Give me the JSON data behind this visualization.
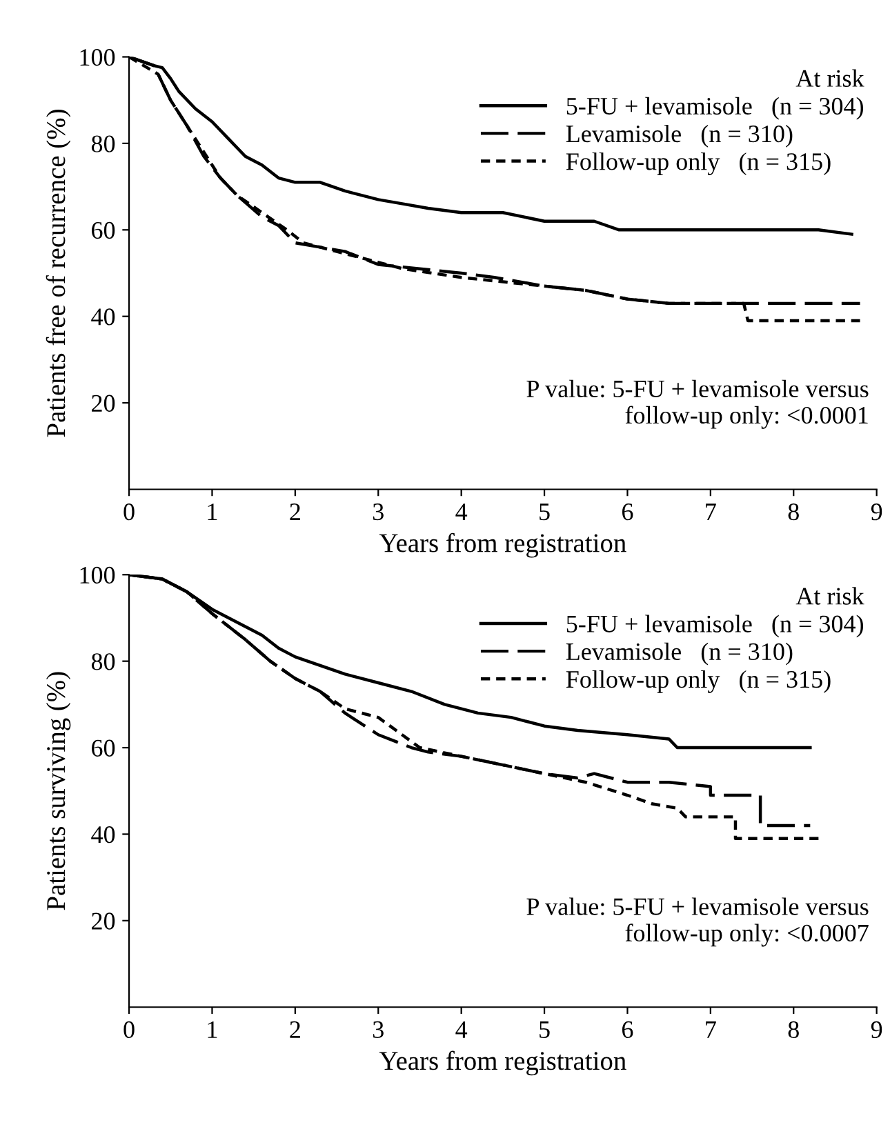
{
  "chart_data": [
    {
      "type": "line",
      "xlabel": "Years from registration",
      "ylabel": "Patients free of recurrence (%)",
      "legend_title": "At risk",
      "legend": "top right",
      "grid": false,
      "marker": "none",
      "xlim": [
        0,
        9
      ],
      "xticks": [
        0,
        1,
        2,
        3,
        4,
        5,
        6,
        7,
        8,
        9
      ],
      "ylim": [
        0,
        100
      ],
      "yticks": [
        20,
        40,
        60,
        80,
        100
      ],
      "annotations": [
        "P value: 5-FU + levamisole versus\nfollow-up only: <0.0001"
      ],
      "series": [
        {
          "name": "5-FU + levamisole   (n = 304)",
          "color": "#000000",
          "line_style": "solid",
          "x": [
            0,
            0.3,
            0.4,
            0.5,
            0.6,
            0.8,
            1.0,
            1.2,
            1.4,
            1.6,
            1.8,
            2.0,
            2.3,
            2.6,
            3.0,
            3.3,
            3.6,
            4.0,
            4.5,
            5.0,
            5.6,
            5.9,
            6.5,
            7.5,
            8.3,
            8.7
          ],
          "values": [
            100,
            98,
            97.5,
            95,
            92,
            88,
            85,
            81,
            77,
            75,
            72,
            71,
            71,
            69,
            67,
            66,
            65,
            64,
            64,
            62,
            62,
            60,
            60,
            60,
            60,
            59
          ]
        },
        {
          "name": "Levamisole   (n = 310)",
          "color": "#000000",
          "line_style": "dashed",
          "x": [
            0,
            0.3,
            0.35,
            0.5,
            0.7,
            0.9,
            1.1,
            1.3,
            1.6,
            1.8,
            2.0,
            2.3,
            2.6,
            3.0,
            3.5,
            4.0,
            4.4,
            5.0,
            5.5,
            6.0,
            6.5,
            7.0,
            8.0,
            8.8
          ],
          "values": [
            100,
            98,
            96,
            90,
            84,
            77,
            72,
            68,
            63,
            61,
            57,
            56,
            55,
            52,
            51,
            50,
            49,
            47,
            46,
            44,
            43,
            43,
            43,
            43
          ]
        },
        {
          "name": "Follow-up only   (n = 315)",
          "color": "#000000",
          "line_style": "dotted",
          "x": [
            0,
            0.35,
            0.5,
            0.7,
            0.9,
            1.1,
            1.3,
            1.6,
            1.9,
            2.1,
            2.5,
            2.9,
            3.3,
            4.0,
            4.5,
            5.0,
            5.5,
            6.0,
            6.5,
            7.4,
            7.45,
            8.8
          ],
          "values": [
            100,
            96,
            90,
            84,
            78,
            72,
            68,
            64,
            60,
            57,
            55,
            53,
            51,
            49,
            48,
            47,
            46,
            44,
            43,
            43,
            39,
            39
          ]
        }
      ]
    },
    {
      "type": "line",
      "xlabel": "Years from registration",
      "ylabel": "Patients surviving (%)",
      "legend_title": "At risk",
      "legend": "top right",
      "grid": false,
      "marker": "none",
      "xlim": [
        0,
        9
      ],
      "xticks": [
        0,
        1,
        2,
        3,
        4,
        5,
        6,
        7,
        8,
        9
      ],
      "ylim": [
        0,
        100
      ],
      "yticks": [
        20,
        40,
        60,
        80,
        100
      ],
      "annotations": [
        "P value: 5-FU + levamisole versus\nfollow-up only: <0.0007"
      ],
      "series": [
        {
          "name": "5-FU + levamisole   (n = 304)",
          "color": "#000000",
          "line_style": "solid",
          "x": [
            0,
            0.4,
            0.7,
            1.0,
            1.3,
            1.6,
            1.8,
            2.0,
            2.3,
            2.6,
            3.0,
            3.4,
            3.8,
            4.2,
            4.6,
            5.0,
            5.4,
            6.0,
            6.5,
            6.6,
            7.0,
            8.2
          ],
          "values": [
            100,
            99,
            96,
            92,
            89,
            86,
            83,
            81,
            79,
            77,
            75,
            73,
            70,
            68,
            67,
            65,
            64,
            63,
            62,
            60,
            60,
            60
          ]
        },
        {
          "name": "Levamisole   (n = 310)",
          "color": "#000000",
          "line_style": "dashed",
          "x": [
            0,
            0.4,
            0.7,
            1.0,
            1.4,
            1.7,
            2.0,
            2.3,
            2.6,
            3.0,
            3.4,
            3.6,
            4.0,
            4.5,
            5.0,
            5.4,
            5.6,
            6.0,
            6.5,
            7.0,
            7.0,
            7.6,
            7.6,
            8.2
          ],
          "values": [
            100,
            99,
            96,
            91,
            85,
            80,
            76,
            73,
            68,
            63,
            60,
            59,
            58,
            56,
            54,
            53,
            54,
            52,
            52,
            51,
            49,
            49,
            42,
            42
          ]
        },
        {
          "name": "Follow-up only   (n = 315)",
          "color": "#000000",
          "line_style": "dotted",
          "x": [
            0,
            0.4,
            0.7,
            1.0,
            1.4,
            1.7,
            2.0,
            2.3,
            2.6,
            3.0,
            3.5,
            4.0,
            4.5,
            5.0,
            5.5,
            6.0,
            6.3,
            6.6,
            6.7,
            7.3,
            7.3,
            8.3
          ],
          "values": [
            100,
            99,
            96,
            91,
            85,
            80,
            76,
            73,
            69,
            67,
            60,
            58,
            56,
            54,
            52,
            49,
            47,
            46,
            44,
            44,
            39,
            39
          ]
        }
      ]
    }
  ]
}
